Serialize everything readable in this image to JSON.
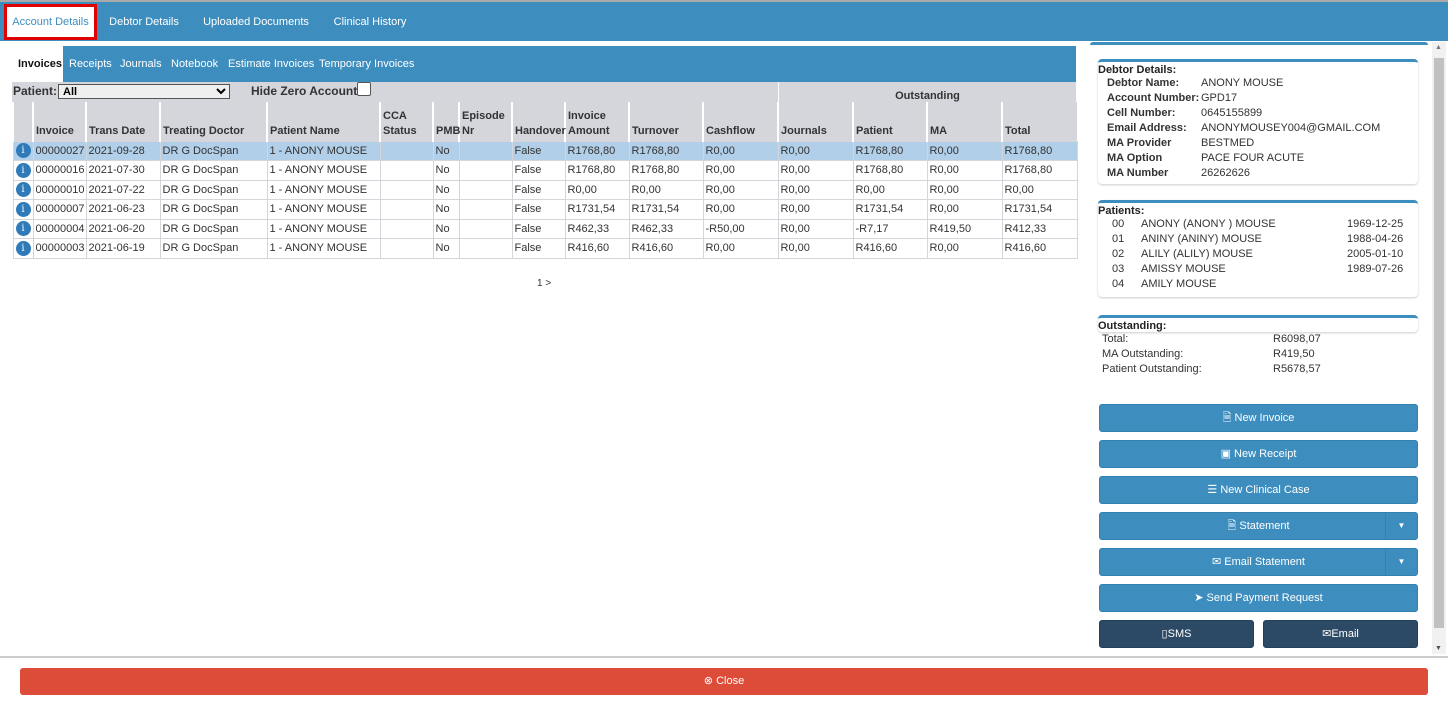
{
  "top_tabs": [
    "Account Details",
    "Debtor Details",
    "Uploaded Documents",
    "Clinical History"
  ],
  "sub_tabs": [
    "Invoices",
    "Receipts",
    "Journals",
    "Notebook",
    "Estimate Invoices",
    "Temporary Invoices"
  ],
  "filter": {
    "patient_label": "Patient:",
    "patient_value": "All",
    "hide_zero_label": "Hide Zero Account",
    "hide_zero_checked": false
  },
  "table": {
    "group_header": "Outstanding",
    "columns": [
      "Invoice",
      "Trans Date",
      "Treating Doctor",
      "Patient Name",
      "CCA Status",
      "PMB",
      "Episode Nr",
      "Handover",
      "Invoice Amount",
      "Turnover",
      "Cashflow",
      "Journals",
      "Patient",
      "MA",
      "Total"
    ],
    "rows": [
      [
        "00000027",
        "2021-09-28",
        "DR G DocSpan",
        "1 - ANONY MOUSE",
        "",
        "No",
        "",
        "False",
        "R1768,80",
        "R1768,80",
        "R0,00",
        "R0,00",
        "R1768,80",
        "R0,00",
        "R1768,80"
      ],
      [
        "00000016",
        "2021-07-30",
        "DR G DocSpan",
        "1 - ANONY MOUSE",
        "",
        "No",
        "",
        "False",
        "R1768,80",
        "R1768,80",
        "R0,00",
        "R0,00",
        "R1768,80",
        "R0,00",
        "R1768,80"
      ],
      [
        "00000010",
        "2021-07-22",
        "DR G DocSpan",
        "1 - ANONY MOUSE",
        "",
        "No",
        "",
        "False",
        "R0,00",
        "R0,00",
        "R0,00",
        "R0,00",
        "R0,00",
        "R0,00",
        "R0,00"
      ],
      [
        "00000007",
        "2021-06-23",
        "DR G DocSpan",
        "1 - ANONY MOUSE",
        "",
        "No",
        "",
        "False",
        "R1731,54",
        "R1731,54",
        "R0,00",
        "R0,00",
        "R1731,54",
        "R0,00",
        "R1731,54"
      ],
      [
        "00000004",
        "2021-06-20",
        "DR G DocSpan",
        "1 - ANONY MOUSE",
        "",
        "No",
        "",
        "False",
        "R462,33",
        "R462,33",
        "-R50,00",
        "R0,00",
        "-R7,17",
        "R419,50",
        "R412,33"
      ],
      [
        "00000003",
        "2021-06-19",
        "DR G DocSpan",
        "1 - ANONY MOUSE",
        "",
        "No",
        "",
        "False",
        "R416,60",
        "R416,60",
        "R0,00",
        "R0,00",
        "R416,60",
        "R0,00",
        "R416,60"
      ]
    ]
  },
  "pagination": "1 >",
  "debtor": {
    "title": "Debtor Details:",
    "fields": [
      [
        "Debtor Name:",
        "ANONY MOUSE"
      ],
      [
        "Account Number:",
        "GPD17"
      ],
      [
        "Cell Number:",
        "0645155899"
      ],
      [
        "Email Address:",
        "ANONYMOUSEY004@GMAIL.COM"
      ],
      [
        "MA Provider",
        "BESTMED"
      ],
      [
        "MA Option",
        "PACE FOUR ACUTE"
      ],
      [
        "MA Number",
        "26262626"
      ]
    ]
  },
  "patients": {
    "title": "Patients:",
    "list": [
      [
        "00",
        "ANONY (ANONY ) MOUSE",
        "1969-12-25"
      ],
      [
        "01",
        "ANINY (ANINY) MOUSE",
        "1988-04-26"
      ],
      [
        "02",
        "ALILY (ALILY) MOUSE",
        "2005-01-10"
      ],
      [
        "03",
        "AMISSY MOUSE",
        "1989-07-26"
      ],
      [
        "04",
        "AMILY MOUSE",
        ""
      ]
    ]
  },
  "outstanding": {
    "title": "Outstanding:",
    "items": [
      [
        "Total:",
        "R6098,07"
      ],
      [
        "MA Outstanding:",
        "R419,50"
      ],
      [
        "Patient Outstanding:",
        "R5678,57"
      ]
    ]
  },
  "buttons": {
    "new_invoice": "New Invoice",
    "new_receipt": "New Receipt",
    "new_clinical_case": "New Clinical Case",
    "statement": "Statement",
    "email_statement": "Email Statement",
    "send_payment_request": "Send Payment Request",
    "sms": "SMS",
    "email": "Email",
    "close": "Close"
  },
  "colors": {
    "primary": "#3d8ebf",
    "dark": "#2c4a66",
    "danger": "#dd4b39",
    "selected_row": "#b1cfe8",
    "active_tab_outline": "#e00000"
  }
}
